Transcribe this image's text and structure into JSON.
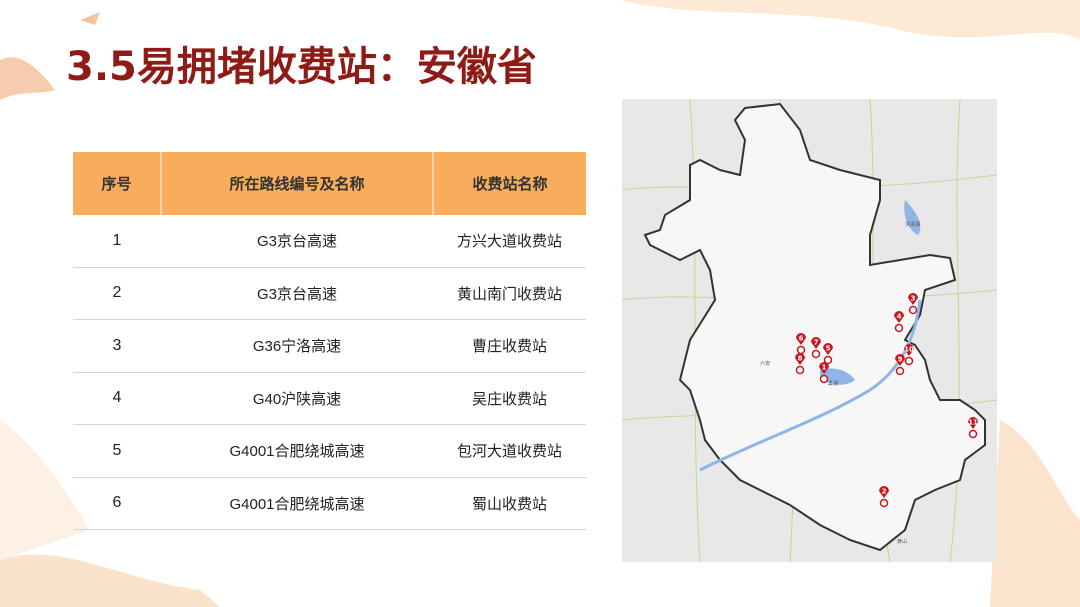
{
  "title": "3.5易拥堵收费站：安徽省",
  "table": {
    "headers": [
      "序号",
      "所在路线编号及名称",
      "收费站名称"
    ],
    "rows": [
      [
        "1",
        "G3京台高速",
        "方兴大道收费站"
      ],
      [
        "2",
        "G3京台高速",
        "黄山南门收费站"
      ],
      [
        "3",
        "G36宁洛高速",
        "曹庄收费站"
      ],
      [
        "4",
        "G40沪陕高速",
        "吴庄收费站"
      ],
      [
        "5",
        "G4001合肥绕城高速",
        "包河大道收费站"
      ],
      [
        "6",
        "G4001合肥绕城高速",
        "蜀山收费站"
      ]
    ]
  },
  "map": {
    "labels": [
      "六安",
      "巢湖",
      "洪泽湖",
      "黄山"
    ],
    "markers": [
      "1",
      "2",
      "3",
      "4",
      "5",
      "6",
      "7",
      "8",
      "9",
      "10",
      "11"
    ],
    "marker_color": "#c8161d",
    "province_color": "#f7f7f7",
    "water_color": "#8fb4e6"
  }
}
